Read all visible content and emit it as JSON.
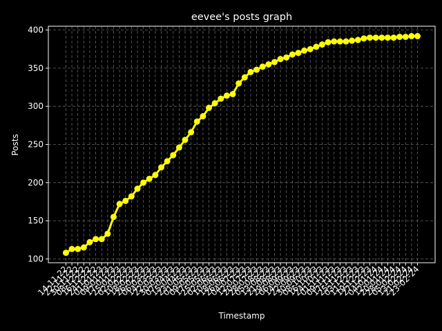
{
  "chart_data": {
    "type": "line",
    "title": "eevee's posts graph",
    "x_label": "Timestamp",
    "y_label": "Posts",
    "categories": [
      "14-11-22",
      "22-11-22",
      "30-11-22",
      "08-12-22",
      "16-12-22",
      "24-12-22",
      "01-01-23",
      "09-01-23",
      "17-01-23",
      "25-01-23",
      "02-02-23",
      "10-02-23",
      "18-02-23",
      "26-02-23",
      "06-03-23",
      "14-03-23",
      "22-03-23",
      "30-03-23",
      "07-04-23",
      "15-04-23",
      "23-04-23",
      "01-05-23",
      "09-05-23",
      "17-05-23",
      "25-05-23",
      "02-06-23",
      "10-06-23",
      "18-06-23",
      "26-06-23",
      "04-07-23",
      "12-07-23",
      "20-07-23",
      "28-07-23",
      "05-08-23",
      "13-08-23",
      "21-08-23",
      "29-08-23",
      "06-09-23",
      "14-09-23",
      "22-09-23",
      "30-09-23",
      "08-10-23",
      "16-10-23",
      "24-10-23",
      "01-11-23",
      "09-11-23",
      "17-11-23",
      "25-11-23",
      "03-12-23",
      "11-12-23",
      "19-12-23",
      "27-12-23",
      "04-01-24",
      "12-01-24",
      "20-01-24",
      "28-01-24",
      "05-02-24",
      "13-02-24",
      "21-02-24",
      "23-02-24"
    ],
    "values": [
      108,
      113,
      113,
      115,
      122,
      126,
      126,
      133,
      155,
      172,
      176,
      182,
      192,
      200,
      205,
      210,
      220,
      228,
      236,
      246,
      256,
      266,
      280,
      287,
      298,
      304,
      310,
      314,
      316,
      330,
      338,
      345,
      348,
      352,
      355,
      358,
      362,
      364,
      368,
      370,
      373,
      375,
      378,
      381,
      384,
      385,
      385,
      385,
      386,
      387,
      389,
      390,
      390,
      390,
      390,
      390,
      391,
      391,
      392,
      392
    ],
    "color": "#ffff00",
    "ylim": [
      95,
      405
    ],
    "yticks": [
      100,
      150,
      200,
      250,
      300,
      350,
      400
    ],
    "grid": true
  }
}
